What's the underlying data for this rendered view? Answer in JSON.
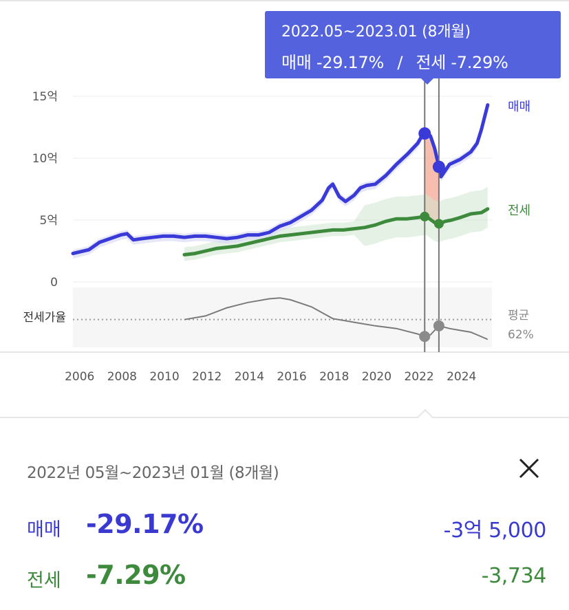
{
  "tooltip": {
    "period": "2022.05~2023.01 (8개월)",
    "sale_label": "매매",
    "sale_pct": "-29.17%",
    "separator": "/",
    "jeonse_label": "전세",
    "jeonse_pct": "-7.29%"
  },
  "chart_data": {
    "type": "line",
    "x_ticks": [
      "2006",
      "2008",
      "2010",
      "2012",
      "2014",
      "2016",
      "2018",
      "2020",
      "2022",
      "2024"
    ],
    "y_ticks": [
      "15억",
      "10억",
      "5억",
      "0"
    ],
    "ylim": [
      0,
      15
    ],
    "xlim": [
      2005.75,
      2025.5
    ],
    "series": [
      {
        "name": "매매",
        "color": "#3a3ad8",
        "x": [
          2005.75,
          2006.5,
          2007.0,
          2007.5,
          2008.0,
          2008.3,
          2008.6,
          2009.0,
          2009.5,
          2010.0,
          2010.5,
          2011.0,
          2011.5,
          2012.0,
          2012.5,
          2013.0,
          2013.5,
          2014.0,
          2014.5,
          2015.0,
          2015.5,
          2016.0,
          2016.5,
          2017.0,
          2017.5,
          2017.8,
          2018.0,
          2018.3,
          2018.6,
          2019.0,
          2019.3,
          2019.6,
          2020.0,
          2020.5,
          2021.0,
          2021.5,
          2022.0,
          2022.2,
          2022.4,
          2022.6,
          2022.8,
          2023.0,
          2023.1,
          2023.5,
          2024.0,
          2024.5,
          2024.8,
          2025.0,
          2025.3
        ],
        "values": [
          2.3,
          2.6,
          3.2,
          3.5,
          3.8,
          3.9,
          3.4,
          3.5,
          3.6,
          3.7,
          3.7,
          3.6,
          3.7,
          3.7,
          3.6,
          3.5,
          3.6,
          3.8,
          3.8,
          4.0,
          4.5,
          4.8,
          5.3,
          5.8,
          6.6,
          7.6,
          7.9,
          6.9,
          6.5,
          7.0,
          7.6,
          7.8,
          7.9,
          8.6,
          9.5,
          10.3,
          11.2,
          11.8,
          12.1,
          11.8,
          10.8,
          9.3,
          8.5,
          9.5,
          9.9,
          10.5,
          11.2,
          12.3,
          14.3
        ]
      },
      {
        "name": "전세",
        "color": "#3d8a3d",
        "x": [
          2011.0,
          2011.5,
          2012.0,
          2012.5,
          2013.0,
          2013.5,
          2014.0,
          2014.5,
          2015.0,
          2015.5,
          2016.0,
          2016.5,
          2017.0,
          2017.5,
          2018.0,
          2018.5,
          2019.0,
          2019.5,
          2020.0,
          2020.5,
          2021.0,
          2021.5,
          2022.0,
          2022.4,
          2022.8,
          2023.0,
          2023.3,
          2023.6,
          2024.0,
          2024.5,
          2025.0,
          2025.3
        ],
        "values": [
          2.2,
          2.3,
          2.5,
          2.7,
          2.8,
          2.9,
          3.1,
          3.3,
          3.5,
          3.7,
          3.8,
          3.9,
          4.0,
          4.1,
          4.2,
          4.2,
          4.3,
          4.4,
          4.6,
          4.9,
          5.1,
          5.1,
          5.2,
          5.3,
          4.8,
          4.7,
          4.9,
          5.0,
          5.2,
          5.5,
          5.6,
          5.9
        ]
      }
    ],
    "ratio_series": {
      "name": "전세가율",
      "x": [
        2011.0,
        2012.0,
        2013.0,
        2013.5,
        2014.0,
        2014.5,
        2015.0,
        2015.5,
        2016.0,
        2016.5,
        2017.0,
        2018.0,
        2019.0,
        2020.0,
        2021.0,
        2021.5,
        2022.0,
        2022.3,
        2022.6,
        2023.0,
        2023.5,
        2024.0,
        2024.5,
        2025.0,
        2025.3
      ],
      "values": [
        0.62,
        0.66,
        0.75,
        0.78,
        0.81,
        0.83,
        0.85,
        0.86,
        0.84,
        0.8,
        0.76,
        0.63,
        0.59,
        0.55,
        0.52,
        0.49,
        0.46,
        0.43,
        0.45,
        0.55,
        0.52,
        0.5,
        0.48,
        0.43,
        0.4
      ]
    },
    "ratio_label": "전세가율",
    "ratio_avg_label_1": "평균",
    "ratio_avg_label_2": "62%",
    "highlight": {
      "start": 2022.33,
      "end": 2023.0
    },
    "end_labels": {
      "sale": "매매",
      "jeonse": "전세"
    }
  },
  "detail": {
    "period": "2022년 05월~2023년 01월 (8개월)",
    "sale_label": "매매",
    "sale_pct": "-29.17%",
    "sale_amount": "-3억 5,000",
    "jeonse_label": "전세",
    "jeonse_pct": "-7.29%",
    "jeonse_amount": "-3,734"
  },
  "colors": {
    "sale": "#3a3ad8",
    "jeonse": "#3d8a3d",
    "tooltip_bg": "#5463dd",
    "highlight": "#f4a896"
  }
}
